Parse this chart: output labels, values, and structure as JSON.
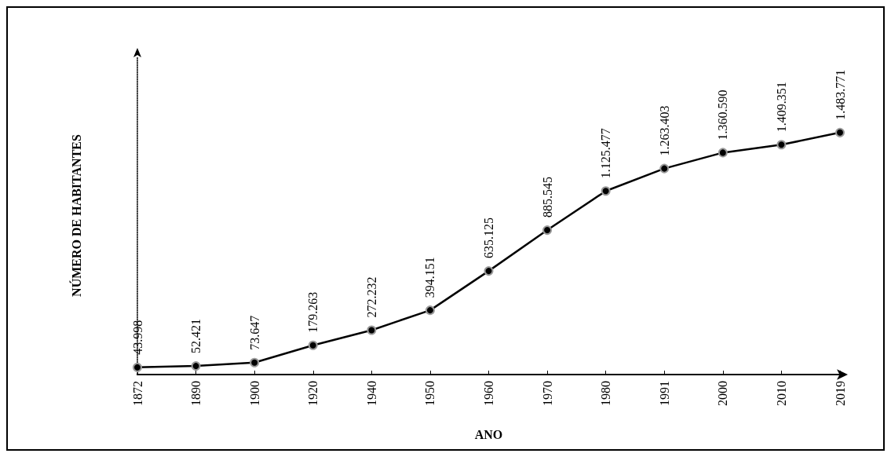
{
  "chart_data": {
    "type": "line",
    "xlabel": "ANO",
    "ylabel": "NÚMERO DE HABITANTES",
    "categories": [
      "1872",
      "1890",
      "1900",
      "1920",
      "1940",
      "1950",
      "1960",
      "1970",
      "1980",
      "1991",
      "2000",
      "2010",
      "2019"
    ],
    "values": [
      43998,
      52421,
      73647,
      179263,
      272232,
      394151,
      635125,
      885545,
      1125477,
      1263403,
      1360590,
      1409351,
      1483771
    ],
    "value_labels": [
      "43.998",
      "52.421",
      "73.647",
      "179.263",
      "272.232",
      "394.151",
      "635.125",
      "885.545",
      "1.125.477",
      "1.263.403",
      "1.360.590",
      "1.409.351",
      "1.483.771"
    ],
    "color": "#000000",
    "ylim": [
      0,
      1950000
    ],
    "grid": false,
    "marker": "circle",
    "line_style": "solid"
  }
}
